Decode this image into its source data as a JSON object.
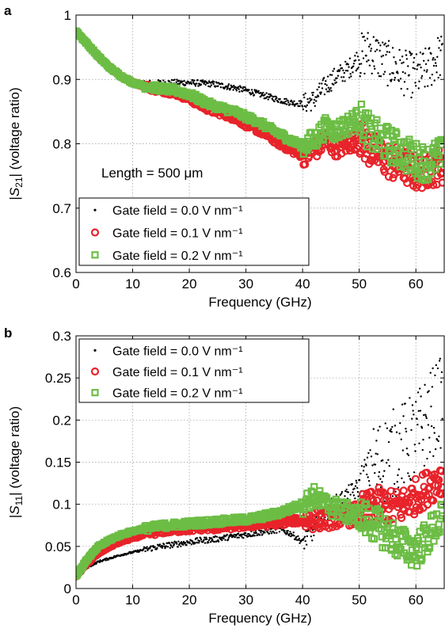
{
  "chart_data": [
    {
      "panel_label": "a",
      "type": "scatter",
      "xlabel": "Frequency (GHz)",
      "ylabel": "|S21| (voltage ratio)",
      "ylabel_parts": {
        "pre": "|",
        "italic": "S",
        "sub": "21",
        "post": "| (voltage ratio)"
      },
      "xlim": [
        0,
        65
      ],
      "ylim": [
        0.6,
        1.0
      ],
      "xticks": [
        0,
        10,
        20,
        30,
        40,
        50,
        60
      ],
      "yticks": [
        0.6,
        0.7,
        0.8,
        0.9,
        1.0
      ],
      "ytick_labels": [
        "0.6",
        "0.7",
        "0.8",
        "0.9",
        "1"
      ],
      "grid": true,
      "legend_position": "bottom-left",
      "annotation": "Length = 500 μm",
      "series": [
        {
          "name": "Gate field = 0.0 V nm⁻¹",
          "marker": "dot",
          "color": "#000000",
          "x": [
            0,
            2,
            4,
            6,
            8,
            10,
            12,
            14,
            16,
            18,
            20,
            22,
            24,
            26,
            28,
            30,
            32,
            34,
            36,
            38,
            40,
            42,
            44,
            46,
            48,
            50,
            52,
            54,
            56,
            58,
            60,
            62,
            64
          ],
          "y": [
            0.975,
            0.955,
            0.935,
            0.918,
            0.905,
            0.897,
            0.894,
            0.894,
            0.895,
            0.895,
            0.895,
            0.894,
            0.893,
            0.89,
            0.887,
            0.883,
            0.878,
            0.873,
            0.868,
            0.864,
            0.862,
            0.868,
            0.89,
            0.905,
            0.915,
            0.935,
            0.945,
            0.93,
            0.92,
            0.91,
            0.905,
            0.915,
            0.935
          ]
        },
        {
          "name": "Gate field = 0.1 V nm⁻¹",
          "marker": "circle",
          "color": "#e8232a",
          "x": [
            0,
            2,
            4,
            6,
            8,
            10,
            12,
            14,
            16,
            18,
            20,
            22,
            24,
            26,
            28,
            30,
            32,
            34,
            36,
            38,
            40,
            42,
            44,
            46,
            48,
            50,
            52,
            54,
            56,
            58,
            60,
            62,
            64
          ],
          "y": [
            0.975,
            0.955,
            0.935,
            0.918,
            0.905,
            0.895,
            0.89,
            0.885,
            0.882,
            0.878,
            0.87,
            0.86,
            0.852,
            0.847,
            0.84,
            0.83,
            0.822,
            0.812,
            0.8,
            0.79,
            0.782,
            0.79,
            0.805,
            0.795,
            0.8,
            0.81,
            0.79,
            0.78,
            0.77,
            0.765,
            0.755,
            0.76,
            0.765
          ]
        },
        {
          "name": "Gate field = 0.2 V nm⁻¹",
          "marker": "square",
          "color": "#6cbd45",
          "x": [
            0,
            2,
            4,
            6,
            8,
            10,
            12,
            14,
            16,
            18,
            20,
            22,
            24,
            26,
            28,
            30,
            32,
            34,
            36,
            38,
            40,
            42,
            44,
            46,
            48,
            50,
            52,
            54,
            56,
            58,
            60,
            62,
            64
          ],
          "y": [
            0.975,
            0.955,
            0.935,
            0.918,
            0.905,
            0.895,
            0.89,
            0.887,
            0.885,
            0.882,
            0.877,
            0.868,
            0.86,
            0.855,
            0.85,
            0.842,
            0.835,
            0.825,
            0.815,
            0.805,
            0.797,
            0.805,
            0.825,
            0.82,
            0.83,
            0.84,
            0.815,
            0.805,
            0.795,
            0.785,
            0.775,
            0.77,
            0.78
          ]
        }
      ]
    },
    {
      "panel_label": "b",
      "type": "scatter",
      "xlabel": "Frequency (GHz)",
      "ylabel": "|S11| (voltage ratio)",
      "ylabel_parts": {
        "pre": "|",
        "italic": "S",
        "sub": "11",
        "post": "| (voltage ratio)"
      },
      "xlim": [
        0,
        65
      ],
      "ylim": [
        0,
        0.3
      ],
      "xticks": [
        0,
        10,
        20,
        30,
        40,
        50,
        60
      ],
      "yticks": [
        0,
        0.05,
        0.1,
        0.15,
        0.2,
        0.25,
        0.3
      ],
      "ytick_labels": [
        "0",
        "0.05",
        "0.1",
        "0.15",
        "0.2",
        "0.25",
        "0.3"
      ],
      "grid": true,
      "legend_position": "top-left",
      "series": [
        {
          "name": "Gate field = 0.0 V nm⁻¹",
          "marker": "dot",
          "color": "#000000",
          "x": [
            0,
            2,
            4,
            6,
            8,
            10,
            12,
            14,
            16,
            18,
            20,
            22,
            24,
            26,
            28,
            30,
            32,
            34,
            36,
            38,
            40,
            42,
            44,
            46,
            48,
            50,
            52,
            54,
            56,
            58,
            60,
            62,
            64
          ],
          "y": [
            0.015,
            0.025,
            0.032,
            0.036,
            0.04,
            0.043,
            0.046,
            0.049,
            0.051,
            0.053,
            0.055,
            0.057,
            0.058,
            0.06,
            0.062,
            0.064,
            0.066,
            0.068,
            0.07,
            0.065,
            0.055,
            0.07,
            0.09,
            0.1,
            0.11,
            0.12,
            0.14,
            0.15,
            0.16,
            0.17,
            0.18,
            0.2,
            0.22
          ]
        },
        {
          "name": "Gate field = 0.1 V nm⁻¹",
          "marker": "circle",
          "color": "#e8232a",
          "x": [
            0,
            2,
            4,
            6,
            8,
            10,
            12,
            14,
            16,
            18,
            20,
            22,
            24,
            26,
            28,
            30,
            32,
            34,
            36,
            38,
            40,
            42,
            44,
            46,
            48,
            50,
            52,
            54,
            56,
            58,
            60,
            62,
            64
          ],
          "y": [
            0.015,
            0.03,
            0.042,
            0.05,
            0.056,
            0.06,
            0.064,
            0.067,
            0.069,
            0.07,
            0.071,
            0.072,
            0.072,
            0.073,
            0.074,
            0.075,
            0.076,
            0.077,
            0.078,
            0.08,
            0.081,
            0.082,
            0.083,
            0.085,
            0.086,
            0.09,
            0.095,
            0.1,
            0.095,
            0.1,
            0.11,
            0.12,
            0.13
          ]
        },
        {
          "name": "Gate field = 0.2 V nm⁻¹",
          "marker": "square",
          "color": "#6cbd45",
          "x": [
            0,
            2,
            4,
            6,
            8,
            10,
            12,
            14,
            16,
            18,
            20,
            22,
            24,
            26,
            28,
            30,
            32,
            34,
            36,
            38,
            40,
            42,
            44,
            46,
            48,
            50,
            52,
            54,
            56,
            58,
            60,
            62,
            64
          ],
          "y": [
            0.015,
            0.035,
            0.05,
            0.058,
            0.064,
            0.068,
            0.071,
            0.073,
            0.075,
            0.076,
            0.077,
            0.078,
            0.079,
            0.08,
            0.081,
            0.082,
            0.084,
            0.087,
            0.09,
            0.095,
            0.1,
            0.11,
            0.1,
            0.095,
            0.09,
            0.085,
            0.08,
            0.07,
            0.06,
            0.05,
            0.045,
            0.06,
            0.08
          ]
        }
      ]
    }
  ]
}
